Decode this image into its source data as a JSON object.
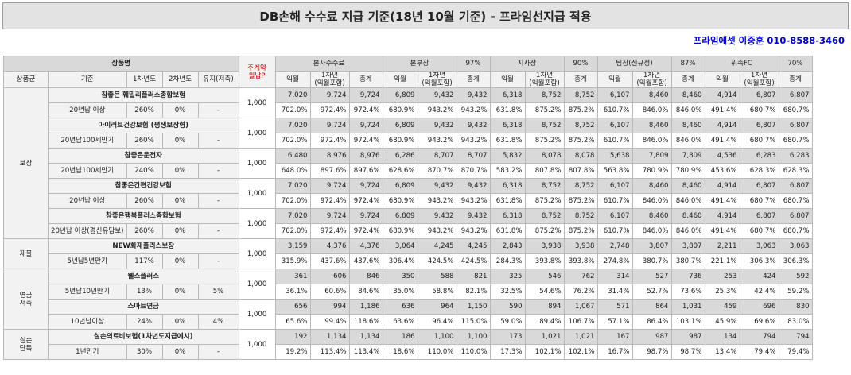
{
  "title": "DB손해 수수료 지급 기준(18년 10월 기준) - 프라임선지급 적용",
  "contact": "프라임에셋 이중훈 010-8588-3460",
  "header": {
    "product_label": "상품명",
    "monthly": "주계약\n월납P",
    "groups": [
      {
        "name": "본사수수료",
        "rate": ""
      },
      {
        "name": "본부장",
        "rate": "97%"
      },
      {
        "name": "지사장",
        "rate": "90%"
      },
      {
        "name": "팀장(신규정)",
        "rate": "87%"
      },
      {
        "name": "위촉FC",
        "rate": "70%"
      }
    ],
    "sub": [
      "상품군",
      "기준",
      "1차년도",
      "2차년도",
      "유지(저축)"
    ],
    "cols": [
      "익월",
      "1차년\n(익월포함)",
      "총계"
    ]
  },
  "categories": [
    {
      "name": "보장",
      "rows": 5
    },
    {
      "name": "재물",
      "rows": 1
    },
    {
      "name": "연금\n저축",
      "rows": 2
    },
    {
      "name": "실손\n단독",
      "rows": 1
    }
  ],
  "products": [
    {
      "name": "참좋은 훼밀리플러스종합보험",
      "basis": "20년납 이상",
      "y1": "260%",
      "y2": "0%",
      "keep": "-",
      "monthly": "1,000",
      "amounts": [
        "7,020",
        "9,724",
        "9,724",
        "6,809",
        "9,432",
        "9,432",
        "6,318",
        "8,752",
        "8,752",
        "6,107",
        "8,460",
        "8,460",
        "4,914",
        "6,807",
        "6,807"
      ],
      "rates": [
        "702.0%",
        "972.4%",
        "972.4%",
        "680.9%",
        "943.2%",
        "943.2%",
        "631.8%",
        "875.2%",
        "875.2%",
        "610.7%",
        "846.0%",
        "846.0%",
        "491.4%",
        "680.7%",
        "680.7%"
      ]
    },
    {
      "name": "아이러브건강보험 (평생보장형)",
      "basis": "20년납100세만기",
      "y1": "260%",
      "y2": "0%",
      "keep": "-",
      "monthly": "1,000",
      "amounts": [
        "7,020",
        "9,724",
        "9,724",
        "6,809",
        "9,432",
        "9,432",
        "6,318",
        "8,752",
        "8,752",
        "6,107",
        "8,460",
        "8,460",
        "4,914",
        "6,807",
        "6,807"
      ],
      "rates": [
        "702.0%",
        "972.4%",
        "972.4%",
        "680.9%",
        "943.2%",
        "943.2%",
        "631.8%",
        "875.2%",
        "875.2%",
        "610.7%",
        "846.0%",
        "846.0%",
        "491.4%",
        "680.7%",
        "680.7%"
      ]
    },
    {
      "name": "참좋은운전자",
      "basis": "20년납100세만기",
      "y1": "240%",
      "y2": "0%",
      "keep": "-",
      "monthly": "1,000",
      "amounts": [
        "6,480",
        "8,976",
        "8,976",
        "6,286",
        "8,707",
        "8,707",
        "5,832",
        "8,078",
        "8,078",
        "5,638",
        "7,809",
        "7,809",
        "4,536",
        "6,283",
        "6,283"
      ],
      "rates": [
        "648.0%",
        "897.6%",
        "897.6%",
        "628.6%",
        "870.7%",
        "870.7%",
        "583.2%",
        "807.8%",
        "807.8%",
        "563.8%",
        "780.9%",
        "780.9%",
        "453.6%",
        "628.3%",
        "628.3%"
      ]
    },
    {
      "name": "참좋은간편건강보험",
      "basis": "20년납 이상",
      "y1": "260%",
      "y2": "0%",
      "keep": "-",
      "monthly": "1,000",
      "amounts": [
        "7,020",
        "9,724",
        "9,724",
        "6,809",
        "9,432",
        "9,432",
        "6,318",
        "8,752",
        "8,752",
        "6,107",
        "8,460",
        "8,460",
        "4,914",
        "6,807",
        "6,807"
      ],
      "rates": [
        "702.0%",
        "972.4%",
        "972.4%",
        "680.9%",
        "943.2%",
        "943.2%",
        "631.8%",
        "875.2%",
        "875.2%",
        "610.7%",
        "846.0%",
        "846.0%",
        "491.4%",
        "680.7%",
        "680.7%"
      ]
    },
    {
      "name": "참좋은행복플러스종합보험",
      "basis": "20년납 이상(경신유담보)",
      "y1": "260%",
      "y2": "0%",
      "keep": "-",
      "monthly": "1,000",
      "amounts": [
        "7,020",
        "9,724",
        "9,724",
        "6,809",
        "9,432",
        "9,432",
        "6,318",
        "8,752",
        "8,752",
        "6,107",
        "8,460",
        "8,460",
        "4,914",
        "6,807",
        "6,807"
      ],
      "rates": [
        "702.0%",
        "972.4%",
        "972.4%",
        "680.9%",
        "943.2%",
        "943.2%",
        "631.8%",
        "875.2%",
        "875.2%",
        "610.7%",
        "846.0%",
        "846.0%",
        "491.4%",
        "680.7%",
        "680.7%"
      ]
    },
    {
      "name": "NEW화재플러스보장",
      "basis": "5년납5년만기",
      "y1": "117%",
      "y2": "0%",
      "keep": "-",
      "monthly": "1,000",
      "amounts": [
        "3,159",
        "4,376",
        "4,376",
        "3,064",
        "4,245",
        "4,245",
        "2,843",
        "3,938",
        "3,938",
        "2,748",
        "3,807",
        "3,807",
        "2,211",
        "3,063",
        "3,063"
      ],
      "rates": [
        "315.9%",
        "437.6%",
        "437.6%",
        "306.4%",
        "424.5%",
        "424.5%",
        "284.3%",
        "393.8%",
        "393.8%",
        "274.8%",
        "380.7%",
        "380.7%",
        "221.1%",
        "306.3%",
        "306.3%"
      ]
    },
    {
      "name": "웰스플러스",
      "basis": "5년납10년만기",
      "y1": "13%",
      "y2": "0%",
      "keep": "5%",
      "monthly": "1,000",
      "amounts": [
        "361",
        "606",
        "846",
        "350",
        "588",
        "821",
        "325",
        "546",
        "762",
        "314",
        "527",
        "736",
        "253",
        "424",
        "592"
      ],
      "rates": [
        "36.1%",
        "60.6%",
        "84.6%",
        "35.0%",
        "58.8%",
        "82.1%",
        "32.5%",
        "54.6%",
        "76.2%",
        "31.4%",
        "52.7%",
        "73.6%",
        "25.3%",
        "42.4%",
        "59.2%"
      ]
    },
    {
      "name": "스마트연금",
      "basis": "10년납이상",
      "y1": "24%",
      "y2": "0%",
      "keep": "4%",
      "monthly": "1,000",
      "amounts": [
        "656",
        "994",
        "1,186",
        "636",
        "964",
        "1,150",
        "590",
        "894",
        "1,067",
        "571",
        "864",
        "1,031",
        "459",
        "696",
        "830"
      ],
      "rates": [
        "65.6%",
        "99.4%",
        "118.6%",
        "63.6%",
        "96.4%",
        "115.0%",
        "59.0%",
        "89.4%",
        "106.7%",
        "57.1%",
        "86.4%",
        "103.1%",
        "45.9%",
        "69.6%",
        "83.0%"
      ]
    },
    {
      "name": "실손의료비보험(1차년도지급에시)",
      "basis": "1년만기",
      "y1": "30%",
      "y2": "0%",
      "keep": "-",
      "monthly": "1,000",
      "amounts": [
        "192",
        "1,134",
        "1,134",
        "186",
        "1,100",
        "1,100",
        "173",
        "1,021",
        "1,021",
        "167",
        "987",
        "987",
        "134",
        "794",
        "794"
      ],
      "rates": [
        "19.2%",
        "113.4%",
        "113.4%",
        "18.6%",
        "110.0%",
        "110.0%",
        "17.3%",
        "102.1%",
        "102.1%",
        "16.7%",
        "98.7%",
        "98.7%",
        "13.4%",
        "79.4%",
        "79.4%"
      ]
    }
  ]
}
